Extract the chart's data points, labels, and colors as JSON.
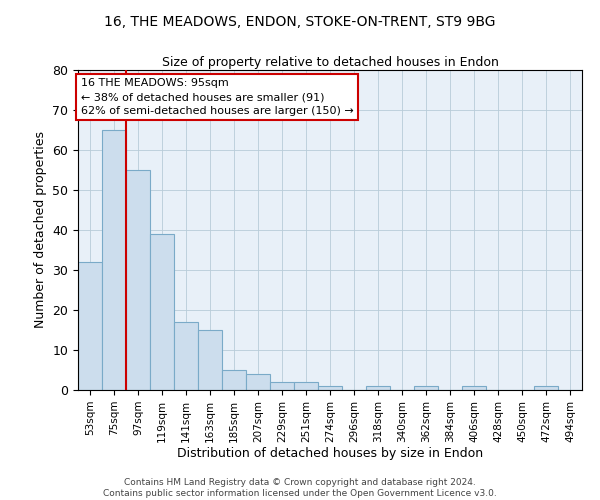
{
  "title1": "16, THE MEADOWS, ENDON, STOKE-ON-TRENT, ST9 9BG",
  "title2": "Size of property relative to detached houses in Endon",
  "xlabel": "Distribution of detached houses by size in Endon",
  "ylabel": "Number of detached properties",
  "bin_labels": [
    "53sqm",
    "75sqm",
    "97sqm",
    "119sqm",
    "141sqm",
    "163sqm",
    "185sqm",
    "207sqm",
    "229sqm",
    "251sqm",
    "274sqm",
    "296sqm",
    "318sqm",
    "340sqm",
    "362sqm",
    "384sqm",
    "406sqm",
    "428sqm",
    "450sqm",
    "472sqm",
    "494sqm"
  ],
  "bar_heights": [
    32,
    65,
    55,
    39,
    17,
    15,
    5,
    4,
    2,
    2,
    1,
    0,
    1,
    0,
    1,
    0,
    1,
    0,
    0,
    1,
    0
  ],
  "bar_color": "#ccdded",
  "bar_edge_color": "#7aaac8",
  "vline_color": "#cc0000",
  "ylim": [
    0,
    80
  ],
  "yticks": [
    0,
    10,
    20,
    30,
    40,
    50,
    60,
    70,
    80
  ],
  "annotation_text": "16 THE MEADOWS: 95sqm\n← 38% of detached houses are smaller (91)\n62% of semi-detached houses are larger (150) →",
  "annotation_box_color": "#cc0000",
  "grid_color": "#b8ccd8",
  "bg_color": "#e8f0f8",
  "footer1": "Contains HM Land Registry data © Crown copyright and database right 2024.",
  "footer2": "Contains public sector information licensed under the Open Government Licence v3.0."
}
